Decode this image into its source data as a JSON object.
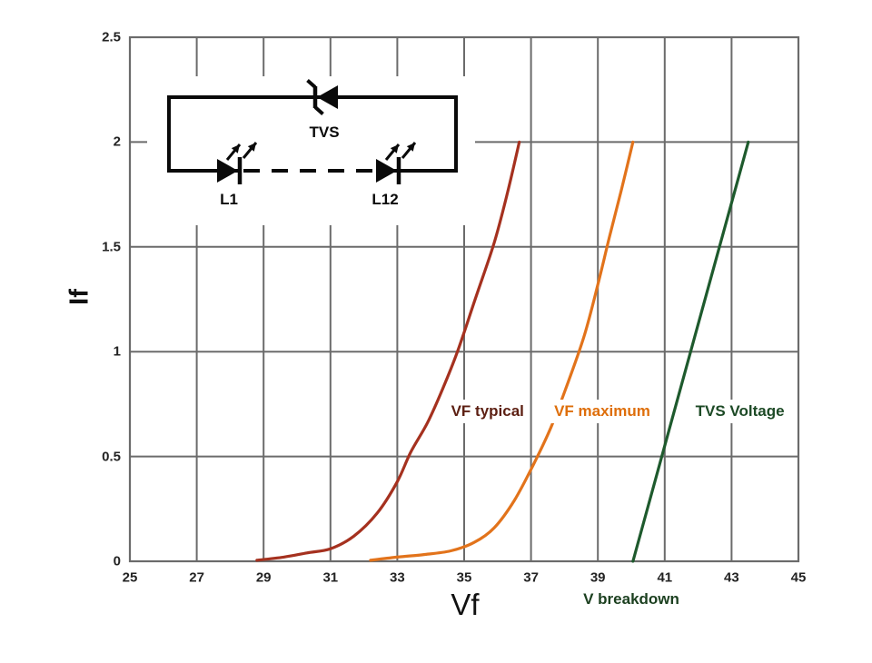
{
  "chart_data": {
    "type": "line",
    "title": "",
    "xlabel": "Vf",
    "ylabel": "If",
    "xlim": [
      25,
      45
    ],
    "ylim": [
      0,
      2.5
    ],
    "xticks": [
      25,
      27,
      29,
      31,
      33,
      35,
      37,
      39,
      41,
      43,
      45
    ],
    "yticks": [
      0,
      0.5,
      1,
      1.5,
      2,
      2.5
    ],
    "grid": true,
    "legend_position": "inline-labels",
    "style": {
      "grid_color": "#6B6B6B",
      "axis_text_color": "#232323",
      "background": "#ffffff"
    },
    "series": [
      {
        "name": "VF typical",
        "color": "#A5311F",
        "label_color": "#5C1F12",
        "label_at": {
          "x": 35.7,
          "y": 0.715
        },
        "points": [
          [
            28.8,
            0.005
          ],
          [
            29.6,
            0.02
          ],
          [
            30.3,
            0.04
          ],
          [
            31.0,
            0.06
          ],
          [
            31.7,
            0.12
          ],
          [
            32.4,
            0.23
          ],
          [
            33.0,
            0.38
          ],
          [
            33.4,
            0.52
          ],
          [
            33.9,
            0.66
          ],
          [
            34.35,
            0.82
          ],
          [
            34.8,
            1.0
          ],
          [
            35.35,
            1.26
          ],
          [
            35.9,
            1.52
          ],
          [
            36.3,
            1.76
          ],
          [
            36.65,
            2.0
          ]
        ]
      },
      {
        "name": "VF maximum",
        "color": "#E2731B",
        "label_color": "#DE6E0A",
        "label_at": {
          "x": 39.13,
          "y": 0.715
        },
        "points": [
          [
            32.2,
            0.005
          ],
          [
            33.0,
            0.02
          ],
          [
            33.8,
            0.032
          ],
          [
            34.6,
            0.05
          ],
          [
            35.3,
            0.09
          ],
          [
            35.9,
            0.16
          ],
          [
            36.5,
            0.29
          ],
          [
            37.1,
            0.47
          ],
          [
            37.6,
            0.64
          ],
          [
            38.1,
            0.85
          ],
          [
            38.6,
            1.08
          ],
          [
            39.0,
            1.32
          ],
          [
            39.35,
            1.55
          ],
          [
            39.7,
            1.77
          ],
          [
            40.05,
            2.0
          ]
        ]
      },
      {
        "name": "TVS Voltage",
        "color": "#1E5A2D",
        "label_color": "#1D4A26",
        "label_at": {
          "x": 43.25,
          "y": 0.715
        },
        "points": [
          [
            40.05,
            0
          ],
          [
            43.5,
            2.0
          ]
        ]
      }
    ],
    "annotation": {
      "text": "V breakdown",
      "color": "#1C4020",
      "x": 40.0
    }
  },
  "inset": {
    "tvs_label": "TVS",
    "led1_label": "L1",
    "led12_label": "L12",
    "wire_color": "#0a0a0a"
  }
}
